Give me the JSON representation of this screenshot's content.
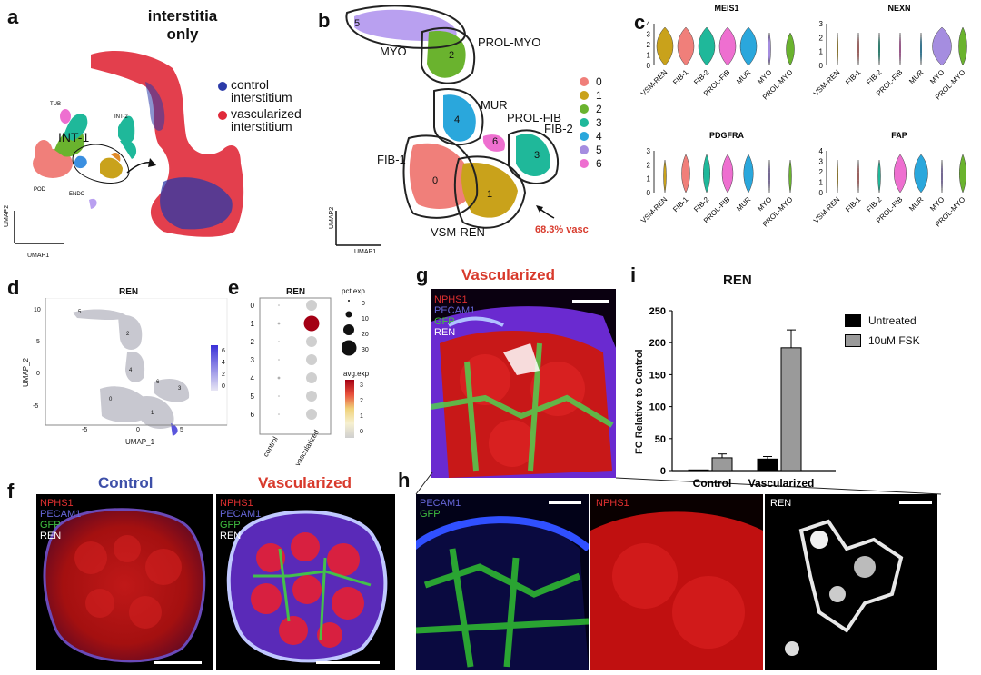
{
  "panels": {
    "a": {
      "letter": "a",
      "title_line1": "interstitia",
      "title_line2": "only",
      "cluster_labels": [
        "TUB",
        "INT-2",
        "INT-1",
        "POD",
        "ENDO"
      ],
      "legend": [
        "control\ninterstitium",
        "vascularized\ninterstitium"
      ],
      "legend_colors": [
        "#2b3aa8",
        "#e02a3a"
      ],
      "axis_x": "UMAP1",
      "axis_y": "UMAP2"
    },
    "b": {
      "letter": "b",
      "regions": [
        "MYO",
        "PROL-MYO",
        "MUR",
        "PROL-FIB",
        "FIB-2",
        "FIB-1",
        "VSM-REN"
      ],
      "cluster_numbers": [
        "5",
        "2",
        "4",
        "6",
        "3",
        "0",
        "1"
      ],
      "legend_items": [
        "0",
        "1",
        "2",
        "3",
        "4",
        "5",
        "6"
      ],
      "legend_colors": [
        "#f07f7a",
        "#c9a21b",
        "#6ab32e",
        "#1fb89a",
        "#2aa7dc",
        "#a58de0",
        "#ee6fd0"
      ],
      "annotation": "68.3% vasc",
      "axis_x": "UMAP1",
      "axis_y": "UMAP2"
    },
    "c": {
      "letter": "c",
      "violin_titles": [
        "MEIS1",
        "NEXN",
        "PDGFRA",
        "FAP"
      ],
      "categories": [
        "VSM-REN",
        "FIB-1",
        "FIB-2",
        "PROL-FIB",
        "MUR",
        "MYO",
        "PROL-MYO"
      ],
      "colors": [
        "#c9a21b",
        "#f07f7a",
        "#1fb89a",
        "#ee6fd0",
        "#2aa7dc",
        "#a58de0",
        "#6ab32e"
      ],
      "yticks_meis1": [
        "4",
        "3",
        "2",
        "1",
        "0"
      ],
      "yticks_3": [
        "3",
        "2",
        "1",
        "0"
      ],
      "yticks_fap": [
        "4",
        "3",
        "2",
        "1",
        "0"
      ]
    },
    "d": {
      "letter": "d",
      "title": "REN",
      "axis_x": "UMAP_1",
      "axis_y": "UMAP_2",
      "xticks": [
        "-5",
        "0",
        "5"
      ],
      "yticks": [
        "10",
        "5",
        "0",
        "-5"
      ],
      "cluster_numbers": [
        "5",
        "2",
        "4",
        "6",
        "3",
        "0",
        "1"
      ],
      "colorbar_ticks": [
        "6",
        "4",
        "2",
        "0"
      ]
    },
    "e": {
      "letter": "e",
      "title": "REN",
      "rows": [
        "0",
        "1",
        "2",
        "3",
        "4",
        "5",
        "6"
      ],
      "cols": [
        "control",
        "vascularized"
      ],
      "size_legend_title": "pct.exp",
      "size_legend_values": [
        "0",
        "10",
        "20",
        "30"
      ],
      "color_legend_title": "avg.exp",
      "color_legend_values": [
        "3",
        "2",
        "1",
        "0"
      ]
    },
    "f": {
      "letter": "f",
      "control_title": "Control",
      "vasc_title": "Vascularized",
      "stains": [
        "NPHS1",
        "PECAM1",
        "GFP",
        "REN"
      ]
    },
    "g": {
      "letter": "g",
      "title": "Vascularized",
      "stains": [
        "NPHS1",
        "PECAM1",
        "GFP",
        "REN"
      ]
    },
    "h": {
      "letter": "h",
      "tile1_stains": [
        "PECAM1",
        "GFP"
      ],
      "tile2_stain": "NPHS1",
      "tile3_stain": "REN"
    },
    "i": {
      "letter": "i",
      "title": "REN",
      "ylabel": "FC Relative to Control",
      "yticks": [
        "250",
        "200",
        "150",
        "100",
        "50",
        "0"
      ],
      "legend": [
        "Untreated",
        "10uM FSK"
      ]
    }
  },
  "chart_data": {
    "type": "bar",
    "title": "REN",
    "categories": [
      "Control",
      "Vascularized"
    ],
    "series": [
      {
        "name": "Untreated",
        "values": [
          1,
          18
        ],
        "errors": [
          0,
          4
        ],
        "color": "#000000"
      },
      {
        "name": "10uM FSK",
        "values": [
          20,
          192
        ],
        "errors": [
          6,
          28
        ],
        "color": "#9a9a9a"
      }
    ],
    "xlabel": "",
    "ylabel": "FC Relative to Control",
    "ylim": [
      0,
      250
    ],
    "grid": false,
    "legend_position": "top-right"
  }
}
